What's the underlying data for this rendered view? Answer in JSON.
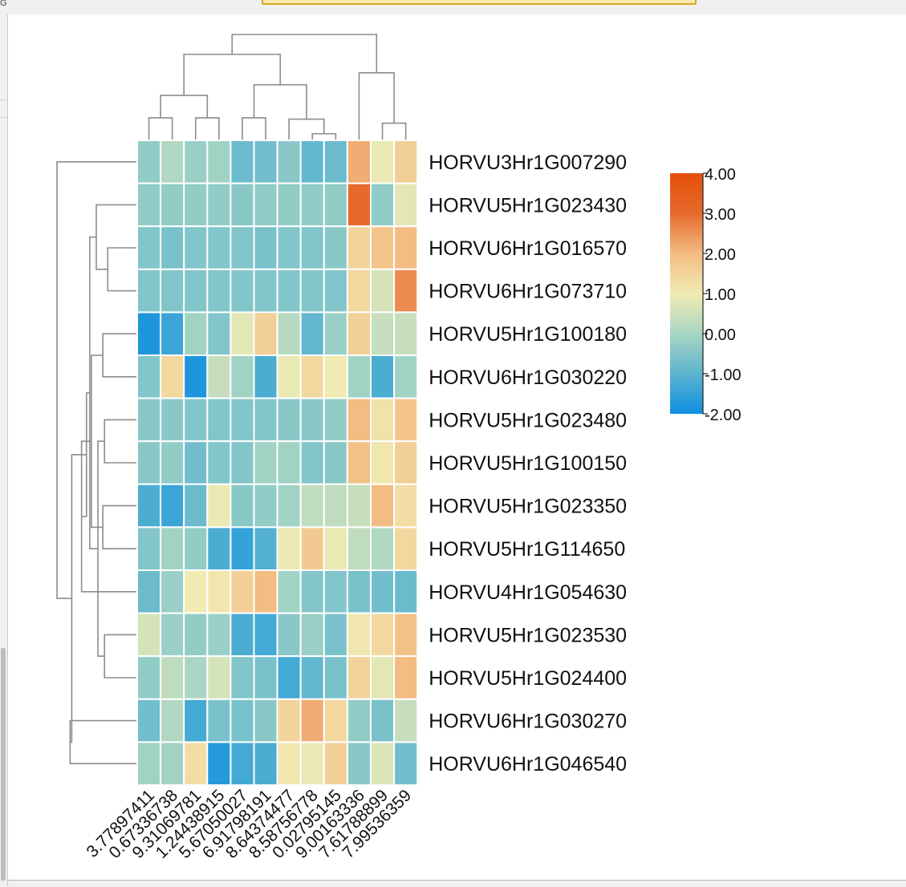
{
  "window": {
    "corner_glyph": "G"
  },
  "chart_data": {
    "type": "heatmap",
    "title": "",
    "rows": [
      "HORVU3Hr1G007290",
      "HORVU5Hr1G023430",
      "HORVU6Hr1G016570",
      "HORVU6Hr1G073710",
      "HORVU5Hr1G100180",
      "HORVU6Hr1G030220",
      "HORVU5Hr1G023480",
      "HORVU5Hr1G100150",
      "HORVU5Hr1G023350",
      "HORVU5Hr1G114650",
      "HORVU4Hr1G054630",
      "HORVU5Hr1G023530",
      "HORVU5Hr1G024400",
      "HORVU6Hr1G030270",
      "HORVU6Hr1G046540"
    ],
    "columns": [
      "3.77897411",
      "0.67336738",
      "9.31069781",
      "1.24438915",
      "5.67050027",
      "6.91798191",
      "8.64374477",
      "8.58756778",
      "0.02795145",
      "9.00163336",
      "7.61788899",
      "7.99536359"
    ],
    "values": [
      [
        -0.3,
        0.1,
        -0.2,
        -0.1,
        -0.8,
        -0.7,
        -0.4,
        -0.9,
        -0.8,
        2.2,
        0.9,
        1.6
      ],
      [
        -0.3,
        -0.3,
        -0.3,
        -0.3,
        -0.4,
        -0.3,
        -0.3,
        -0.3,
        -0.3,
        3.0,
        -0.3,
        0.8
      ],
      [
        -0.5,
        -0.6,
        -0.5,
        -0.5,
        -0.5,
        -0.6,
        -0.5,
        -0.5,
        -0.4,
        1.5,
        1.8,
        2.0
      ],
      [
        -0.5,
        -0.5,
        -0.5,
        -0.5,
        -0.5,
        -0.5,
        -0.5,
        -0.5,
        -0.5,
        1.4,
        0.6,
        2.6
      ],
      [
        -1.8,
        -1.4,
        -0.1,
        -0.5,
        0.8,
        1.6,
        0.2,
        -0.9,
        -0.2,
        1.6,
        0.4,
        0.4
      ],
      [
        -0.5,
        1.4,
        -1.8,
        0.4,
        -0.1,
        -1.2,
        0.9,
        1.4,
        1.0,
        -0.1,
        -1.2,
        -0.1
      ],
      [
        -0.4,
        -0.4,
        -0.5,
        -0.5,
        -0.5,
        -0.5,
        -0.4,
        -0.4,
        -0.3,
        2.0,
        1.2,
        1.8
      ],
      [
        -0.4,
        -0.3,
        -0.7,
        -0.5,
        -0.5,
        -0.1,
        -0.1,
        -0.5,
        -0.4,
        1.9,
        1.1,
        1.6
      ],
      [
        -1.2,
        -1.4,
        -0.8,
        0.9,
        -0.4,
        -0.3,
        -0.1,
        0.3,
        0.3,
        0.4,
        2.0,
        1.3
      ],
      [
        -0.5,
        -0.1,
        -0.3,
        -1.2,
        -1.5,
        -1.1,
        0.9,
        1.7,
        0.9,
        0.3,
        0.1,
        1.4
      ],
      [
        -0.8,
        -0.2,
        1.0,
        1.1,
        1.6,
        2.0,
        -0.1,
        -0.5,
        -0.5,
        -0.6,
        -0.7,
        -0.8
      ],
      [
        0.6,
        -0.2,
        -0.3,
        -0.2,
        -1.2,
        -1.3,
        -0.4,
        -0.2,
        -0.6,
        1.1,
        1.4,
        1.9
      ],
      [
        -0.3,
        0.3,
        0.0,
        0.6,
        -0.5,
        -0.6,
        -1.3,
        -0.9,
        -0.6,
        1.5,
        0.8,
        2.0
      ],
      [
        -0.7,
        0.1,
        -1.3,
        -0.6,
        -0.6,
        -0.4,
        1.5,
        2.2,
        1.4,
        -0.3,
        -0.6,
        0.4
      ],
      [
        -0.1,
        -0.1,
        1.3,
        -1.7,
        -1.3,
        -1.2,
        1.1,
        0.9,
        1.6,
        -0.4,
        0.7,
        -0.7
      ]
    ],
    "colorbar": {
      "min": -2.0,
      "max": 4.0,
      "tick_labels": [
        "4.00",
        "3.00",
        "2.00",
        "1.00",
        "0.00",
        "-1.00",
        "-2.00"
      ],
      "colors": [
        "#0e8fe0",
        "#5bb4cf",
        "#a9d6c4",
        "#f1ebb2",
        "#f3bc83",
        "#e66a2c",
        "#e34f0a"
      ]
    },
    "cell_border_color": "#ffffff",
    "dendrogram_color": "#8c8c8c",
    "column_dendrogram": [
      [
        2,
        3,
        0.85
      ],
      [
        0,
        1,
        0.85
      ],
      [
        7,
        8,
        0.25
      ],
      [
        10,
        11,
        0.65
      ],
      [
        6,
        14,
        0.8
      ],
      [
        4,
        5,
        0.85
      ],
      [
        12,
        13,
        1.7
      ],
      [
        17,
        16,
        2.1
      ],
      [
        9,
        15,
        2.55
      ],
      [
        18,
        19,
        3.25
      ],
      [
        20,
        21,
        4.0
      ]
    ],
    "row_dendrogram": [
      [
        2,
        3,
        0.9
      ],
      [
        6,
        7,
        1.0
      ],
      [
        11,
        12,
        1.0
      ],
      [
        4,
        5,
        1.05
      ],
      [
        8,
        9,
        1.05
      ],
      [
        1,
        15,
        1.25
      ],
      [
        17,
        16,
        1.2
      ],
      [
        18,
        19,
        1.4
      ],
      [
        21,
        20,
        1.45
      ],
      [
        13,
        14,
        2.05
      ],
      [
        10,
        22,
        1.7
      ],
      [
        23,
        25,
        1.55
      ],
      [
        26,
        24,
        2.0
      ],
      [
        0,
        27,
        2.45
      ]
    ]
  }
}
